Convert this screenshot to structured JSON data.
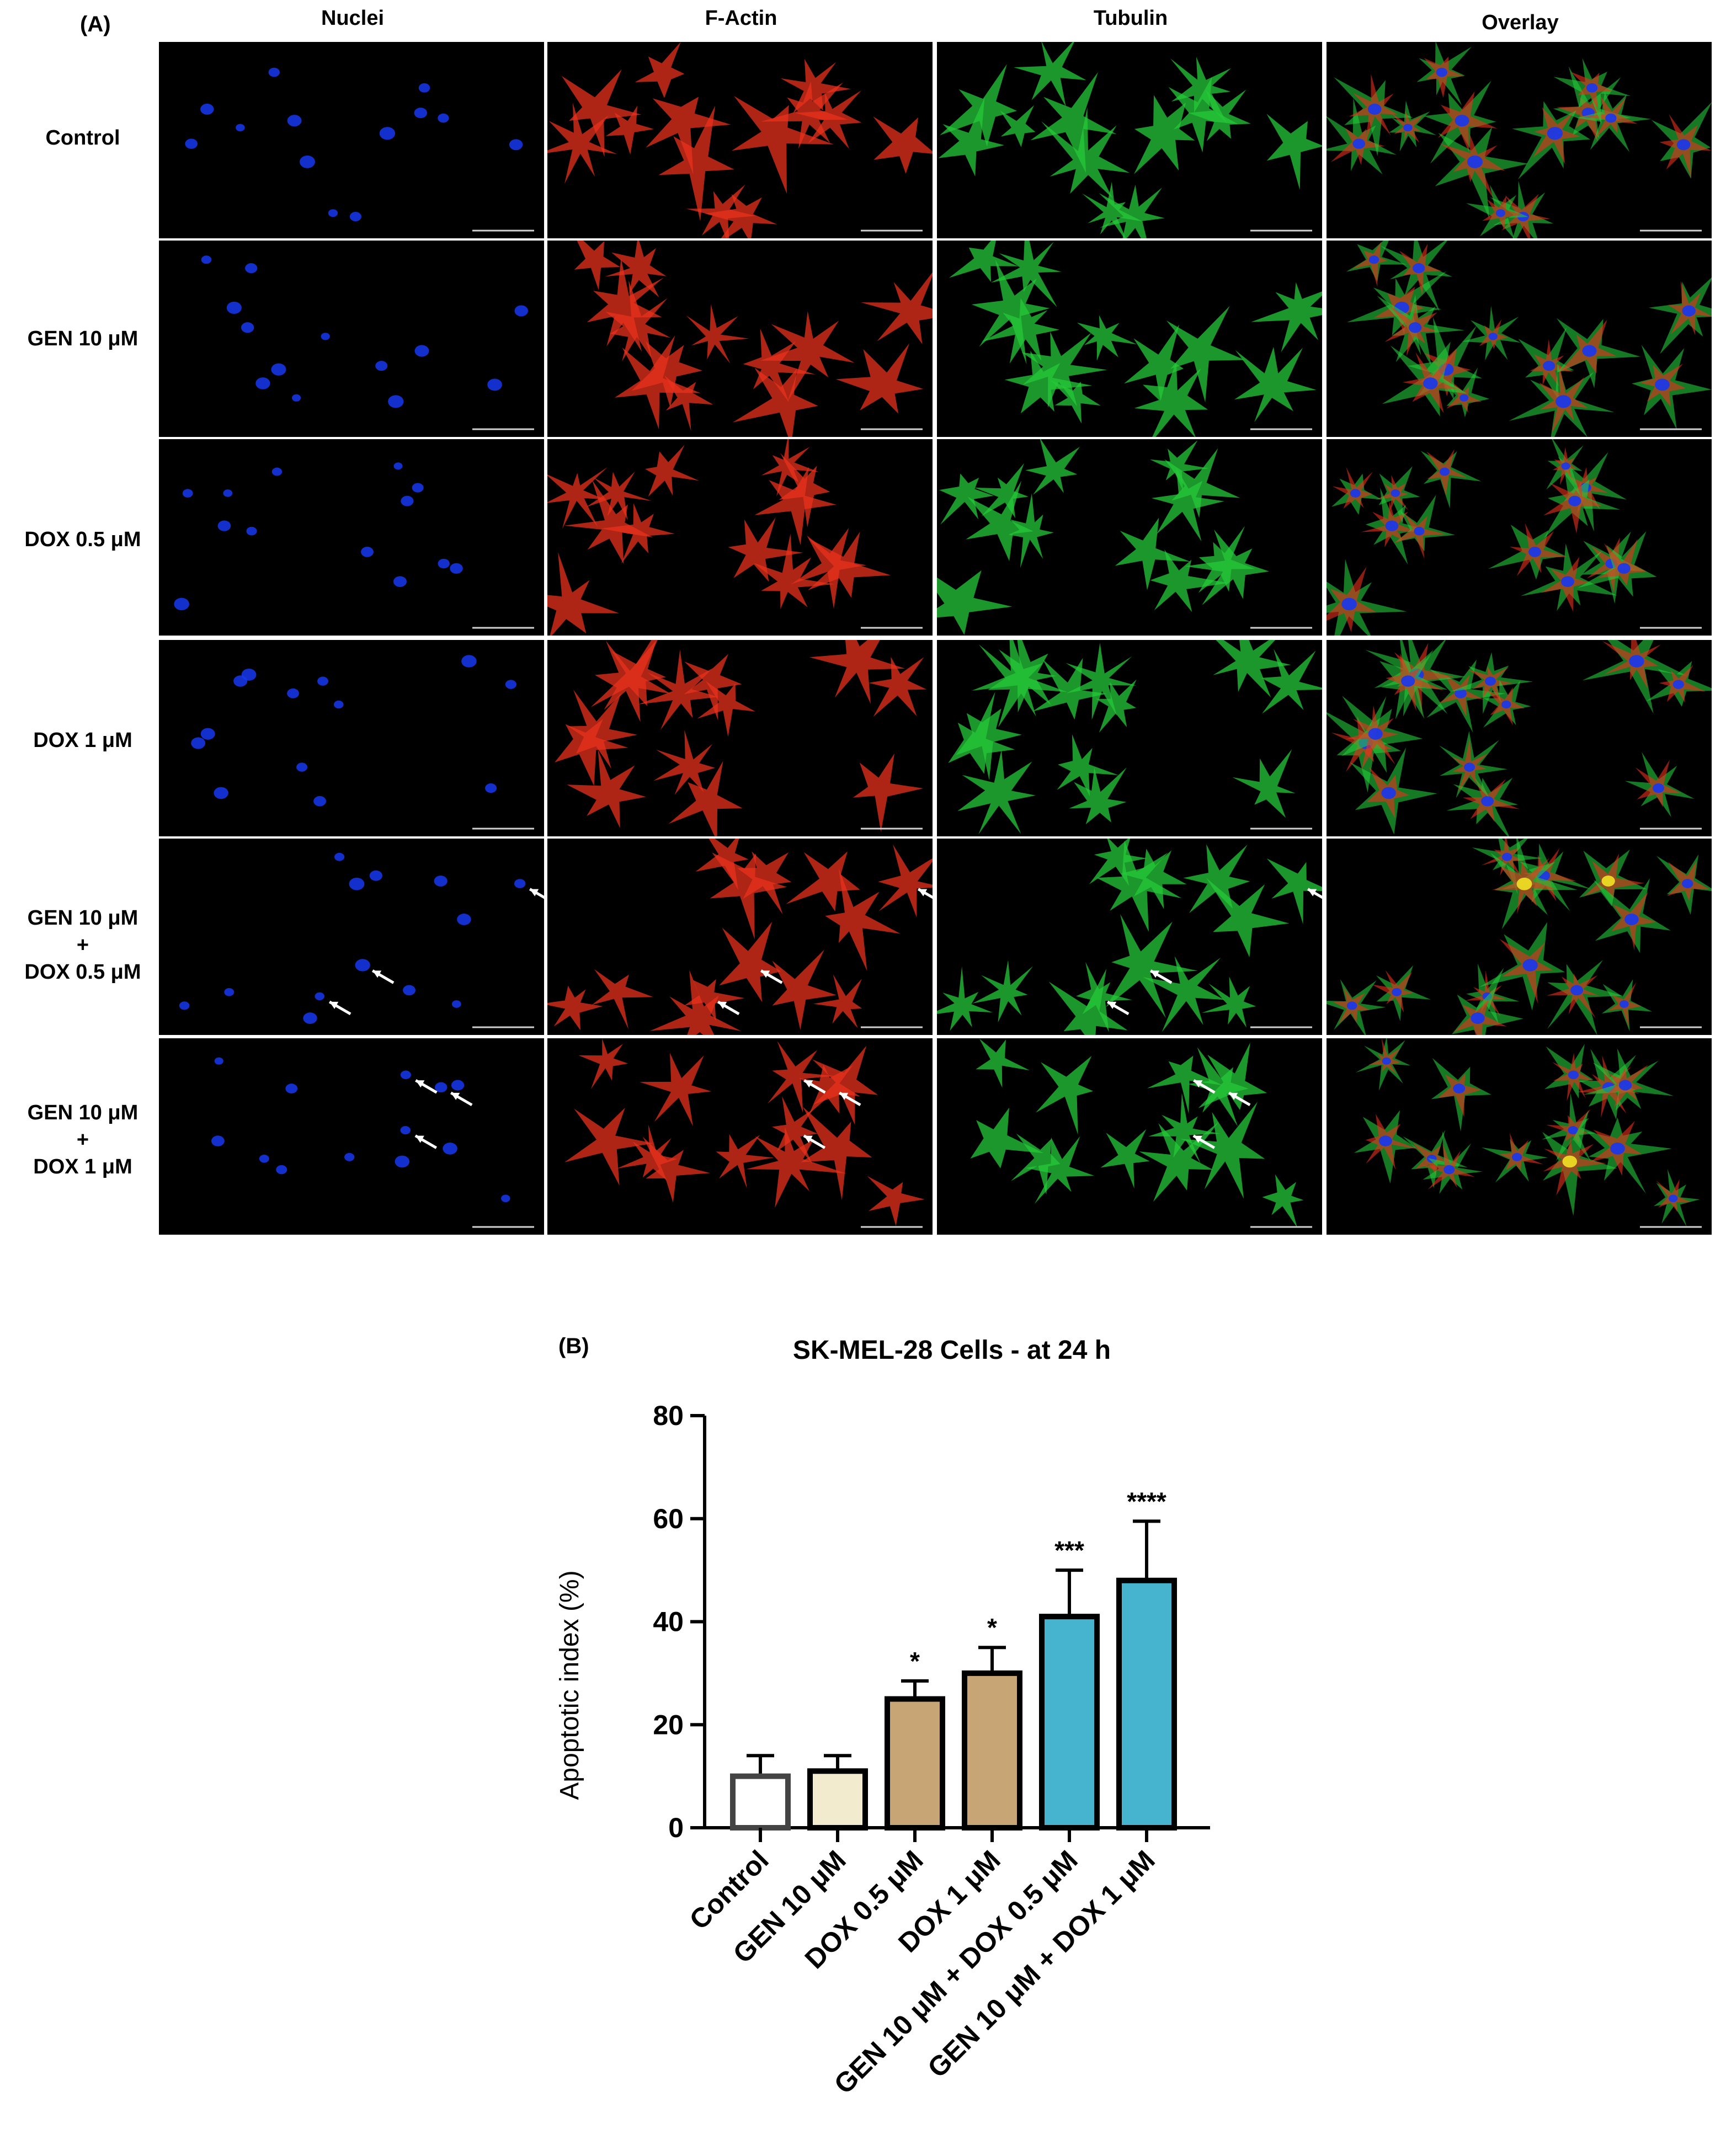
{
  "panel_a": {
    "letter": "(A)",
    "columns": [
      "Nuclei",
      "F-Actin",
      "Tubulin",
      "Overlay"
    ],
    "rows": [
      {
        "lines": [
          "Control"
        ],
        "arrows": false
      },
      {
        "lines": [
          "GEN 10 μM"
        ],
        "arrows": false
      },
      {
        "lines": [
          "DOX 0.5 μM"
        ],
        "arrows": false
      },
      {
        "lines": [
          "DOX 1 μM"
        ],
        "arrows": false
      },
      {
        "lines": [
          "GEN 10 μM",
          "+",
          "DOX 0.5 μM"
        ],
        "arrows": true
      },
      {
        "lines": [
          "GEN 10 μM",
          "+",
          "DOX 1 μM"
        ],
        "arrows": true
      }
    ],
    "channel_colors": {
      "nuclei": "#1637f0",
      "actin": "#e8321c",
      "tubulin": "#25c93a",
      "overlay_bright": "#f2e324"
    },
    "markers": {
      "arrow_color": "#ffffff",
      "scale_bar_color": "#d0d0d0"
    }
  },
  "panel_b": {
    "letter": "(B)",
    "title": "SK-MEL-28 Cells - at 24 h"
  },
  "chart_data": {
    "type": "bar",
    "title": "SK-MEL-28 Cells - at 24 h",
    "xlabel": "",
    "ylabel": "Apoptotic index (%)",
    "ylim": [
      0,
      80
    ],
    "yticks": [
      0,
      20,
      40,
      60,
      80
    ],
    "categories": [
      "Control",
      "GEN 10 μM",
      "DOX 0.5 μM",
      "DOX 1 μM",
      "GEN 10 μM + DOX 0.5  μM",
      "GEN 10 μM + DOX 1 μM"
    ],
    "values": [
      10,
      11,
      25,
      30,
      41,
      48
    ],
    "error_upper": [
      14,
      14,
      28.5,
      35,
      50,
      59.5
    ],
    "significance": [
      "",
      "",
      "*",
      "*",
      "***",
      "****"
    ],
    "bar_colors": [
      "#ffffff",
      "#f3ebcd",
      "#c8a574",
      "#c8a574",
      "#46b3cf",
      "#46b3cf"
    ],
    "grid": false,
    "legend": "none"
  }
}
